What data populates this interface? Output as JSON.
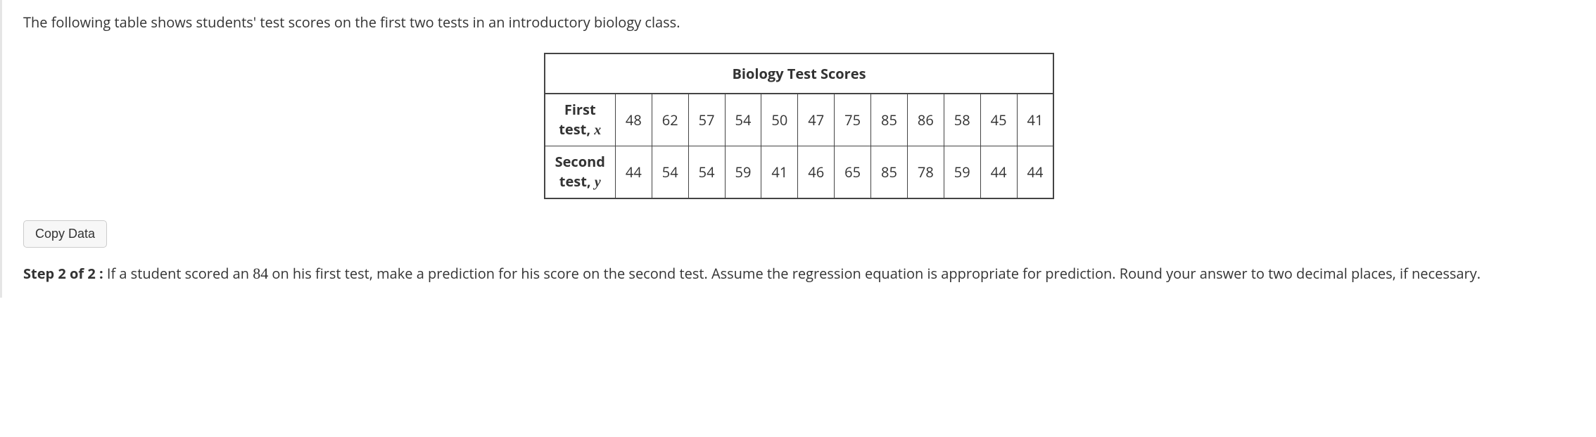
{
  "intro": "The following table shows students' test scores on the first two tests in an introductory biology class.",
  "table": {
    "title": "Biology Test Scores",
    "row1": {
      "label_line1": "First",
      "label_line2": "test, ",
      "var": "x",
      "values": [
        "48",
        "62",
        "57",
        "54",
        "50",
        "47",
        "75",
        "85",
        "86",
        "58",
        "45",
        "41"
      ]
    },
    "row2": {
      "label_line1": "Second",
      "label_line2": "test, ",
      "var": "y",
      "values": [
        "44",
        "54",
        "54",
        "59",
        "41",
        "46",
        "65",
        "85",
        "78",
        "59",
        "44",
        "44"
      ]
    }
  },
  "copy_button": "Copy Data",
  "step": {
    "label": "Step 2 of 2 :",
    "pre": "  If a student scored an ",
    "value": "84",
    "post": " on his first test, make a prediction for his score on the second test. Assume the regression equation is appropriate for prediction. Round your answer to two decimal places, if necessary."
  }
}
